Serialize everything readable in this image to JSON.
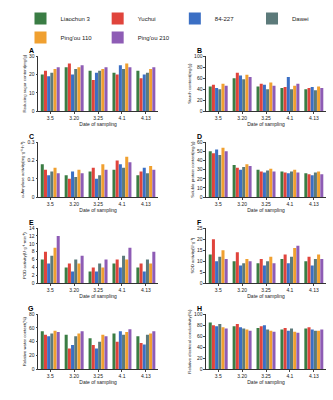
{
  "chart_data": [
    {
      "type": "bar",
      "title": "A",
      "legend": "top",
      "x_label": "Date of sampling",
      "y_label": "Reducing sugar content(mg/g)",
      "categories": [
        "3.5",
        "3.20",
        "3.25",
        "4.1",
        "4.13"
      ],
      "ylim": [
        0,
        30
      ],
      "yticks": [
        0,
        10,
        20,
        30
      ],
      "series": [
        {
          "name": "Liaochun 3",
          "color": "#3a7d44",
          "values": [
            20,
            24,
            22,
            21,
            22
          ]
        },
        {
          "name": "Yuchui",
          "color": "#e0443c",
          "values": [
            22,
            26,
            17,
            20,
            18
          ]
        },
        {
          "name": "84-227",
          "color": "#3b6fc4",
          "values": [
            19,
            20,
            21,
            25,
            20
          ]
        },
        {
          "name": "Dawei",
          "color": "#5c7a7a",
          "values": [
            21,
            23,
            22,
            23,
            21
          ]
        },
        {
          "name": "Ping'ou 110",
          "color": "#f0a030",
          "values": [
            23,
            24,
            23,
            26,
            23
          ]
        },
        {
          "name": "Ping'ou 210",
          "color": "#8e5cb5",
          "values": [
            24,
            25,
            24,
            24,
            24
          ]
        }
      ]
    },
    {
      "type": "bar",
      "title": "B",
      "x_label": "Date of sampling",
      "y_label": "Starch content(mg/g)",
      "categories": [
        "3.5",
        "3.20",
        "3.25",
        "4.1",
        "4.13"
      ],
      "ylim": [
        0,
        100
      ],
      "yticks": [
        0,
        20,
        40,
        60,
        80,
        100
      ],
      "series": [
        {
          "name": "Liaochun 3",
          "color": "#3a7d44",
          "values": [
            45,
            60,
            45,
            42,
            40
          ]
        },
        {
          "name": "Yuchui",
          "color": "#e0443c",
          "values": [
            48,
            70,
            50,
            44,
            42
          ]
        },
        {
          "name": "84-227",
          "color": "#3b6fc4",
          "values": [
            42,
            65,
            48,
            62,
            44
          ]
        },
        {
          "name": "Dawei",
          "color": "#5c7a7a",
          "values": [
            40,
            58,
            40,
            40,
            38
          ]
        },
        {
          "name": "Ping'ou 110",
          "color": "#f0a030",
          "values": [
            50,
            66,
            52,
            46,
            45
          ]
        },
        {
          "name": "Ping'ou 210",
          "color": "#8e5cb5",
          "values": [
            46,
            62,
            46,
            50,
            42
          ]
        }
      ]
    },
    {
      "type": "bar",
      "title": "C",
      "x_label": "Date of sampling",
      "y_label": "α-Amylase activity(mg·g⁻¹·h⁻¹)",
      "categories": [
        "3.5",
        "3.20",
        "3.25",
        "4.1",
        "4.13"
      ],
      "ylim": [
        0,
        0.3
      ],
      "yticks": [
        0,
        0.1,
        0.2,
        0.3
      ],
      "series": [
        {
          "name": "Liaochun 3",
          "color": "#3a7d44",
          "values": [
            0.18,
            0.12,
            0.14,
            0.15,
            0.12
          ]
        },
        {
          "name": "Yuchui",
          "color": "#e0443c",
          "values": [
            0.15,
            0.1,
            0.16,
            0.2,
            0.14
          ]
        },
        {
          "name": "84-227",
          "color": "#3b6fc4",
          "values": [
            0.12,
            0.14,
            0.1,
            0.18,
            0.16
          ]
        },
        {
          "name": "Dawei",
          "color": "#5c7a7a",
          "values": [
            0.14,
            0.11,
            0.12,
            0.16,
            0.13
          ]
        },
        {
          "name": "Ping'ou 110",
          "color": "#f0a030",
          "values": [
            0.16,
            0.15,
            0.18,
            0.22,
            0.17
          ]
        },
        {
          "name": "Ping'ou 210",
          "color": "#8e5cb5",
          "values": [
            0.13,
            0.13,
            0.15,
            0.19,
            0.15
          ]
        }
      ]
    },
    {
      "type": "bar",
      "title": "D",
      "x_label": "Date of sampling",
      "y_label": "Soluble protein content(mg/g)",
      "categories": [
        "3.5",
        "3.20",
        "3.25",
        "4.1",
        "4.13"
      ],
      "ylim": [
        0,
        60
      ],
      "yticks": [
        0,
        10,
        20,
        30,
        40,
        50,
        60
      ],
      "series": [
        {
          "name": "Liaochun 3",
          "color": "#3a7d44",
          "values": [
            50,
            35,
            30,
            28,
            26
          ]
        },
        {
          "name": "Yuchui",
          "color": "#e0443c",
          "values": [
            48,
            32,
            28,
            27,
            25
          ]
        },
        {
          "name": "84-227",
          "color": "#3b6fc4",
          "values": [
            52,
            30,
            27,
            26,
            24
          ]
        },
        {
          "name": "Dawei",
          "color": "#5c7a7a",
          "values": [
            46,
            33,
            29,
            28,
            27
          ]
        },
        {
          "name": "Ping'ou 110",
          "color": "#f0a030",
          "values": [
            54,
            36,
            31,
            30,
            28
          ]
        },
        {
          "name": "Ping'ou 210",
          "color": "#8e5cb5",
          "values": [
            50,
            34,
            28,
            27,
            25
          ]
        }
      ]
    },
    {
      "type": "bar",
      "title": "E",
      "x_label": "Date of sampling",
      "y_label": "POD activity(U·g⁻¹·min⁻¹)",
      "categories": [
        "3.5",
        "3.20",
        "3.25",
        "4.1",
        "4.13"
      ],
      "ylim": [
        0,
        14
      ],
      "yticks": [
        0,
        2,
        4,
        6,
        8,
        10,
        12,
        14
      ],
      "series": [
        {
          "name": "Liaochun 3",
          "color": "#3a7d44",
          "values": [
            6,
            4,
            3,
            5,
            4
          ]
        },
        {
          "name": "Yuchui",
          "color": "#e0443c",
          "values": [
            8,
            5,
            4,
            6,
            5
          ]
        },
        {
          "name": "84-227",
          "color": "#3b6fc4",
          "values": [
            5,
            3,
            3,
            4,
            3
          ]
        },
        {
          "name": "Dawei",
          "color": "#5c7a7a",
          "values": [
            7,
            6,
            5,
            7,
            6
          ]
        },
        {
          "name": "Ping'ou 110",
          "color": "#f0a030",
          "values": [
            9,
            5,
            4,
            6,
            5
          ]
        },
        {
          "name": "Ping'ou 210",
          "color": "#8e5cb5",
          "values": [
            12,
            7,
            6,
            9,
            8
          ]
        }
      ]
    },
    {
      "type": "bar",
      "title": "F",
      "x_label": "Date of sampling",
      "y_label": "SOD activity(U·g⁻¹)",
      "categories": [
        "3.5",
        "3.20",
        "3.25",
        "4.1",
        "4.13"
      ],
      "ylim": [
        0,
        25
      ],
      "yticks": [
        0,
        5,
        10,
        15,
        20,
        25
      ],
      "series": [
        {
          "name": "Liaochun 3",
          "color": "#3a7d44",
          "values": [
            13,
            10,
            9,
            11,
            10
          ]
        },
        {
          "name": "Yuchui",
          "color": "#e0443c",
          "values": [
            20,
            14,
            11,
            13,
            12
          ]
        },
        {
          "name": "84-227",
          "color": "#3b6fc4",
          "values": [
            10,
            8,
            8,
            9,
            8
          ]
        },
        {
          "name": "Dawei",
          "color": "#5c7a7a",
          "values": [
            12,
            9,
            10,
            12,
            11
          ]
        },
        {
          "name": "Ping'ou 110",
          "color": "#f0a030",
          "values": [
            15,
            11,
            12,
            16,
            13
          ]
        },
        {
          "name": "Ping'ou 210",
          "color": "#8e5cb5",
          "values": [
            11,
            10,
            9,
            17,
            11
          ]
        }
      ]
    },
    {
      "type": "bar",
      "title": "G",
      "x_label": "Date of sampling",
      "y_label": "Relative water content(%)",
      "categories": [
        "3.5",
        "3.20",
        "3.25",
        "4.1",
        "4.13"
      ],
      "ylim": [
        0,
        80
      ],
      "yticks": [
        0,
        20,
        40,
        60,
        80
      ],
      "series": [
        {
          "name": "Liaochun 3",
          "color": "#3a7d44",
          "values": [
            55,
            50,
            45,
            52,
            48
          ]
        },
        {
          "name": "Yuchui",
          "color": "#e0443c",
          "values": [
            50,
            30,
            35,
            40,
            38
          ]
        },
        {
          "name": "84-227",
          "color": "#3b6fc4",
          "values": [
            48,
            35,
            30,
            55,
            36
          ]
        },
        {
          "name": "Dawei",
          "color": "#5c7a7a",
          "values": [
            52,
            48,
            40,
            50,
            50
          ]
        },
        {
          "name": "Ping'ou 110",
          "color": "#f0a030",
          "values": [
            56,
            52,
            50,
            54,
            52
          ]
        },
        {
          "name": "Ping'ou 210",
          "color": "#8e5cb5",
          "values": [
            54,
            55,
            48,
            58,
            55
          ]
        }
      ]
    },
    {
      "type": "bar",
      "title": "H",
      "x_label": "Date of sampling",
      "y_label": "Relative electrical conductivity(%)",
      "categories": [
        "3.5",
        "3.20",
        "3.25",
        "4.1",
        "4.13"
      ],
      "ylim": [
        0,
        100
      ],
      "yticks": [
        0,
        20,
        40,
        60,
        80,
        100
      ],
      "series": [
        {
          "name": "Liaochun 3",
          "color": "#3a7d44",
          "values": [
            85,
            78,
            75,
            72,
            74
          ]
        },
        {
          "name": "Yuchui",
          "color": "#e0443c",
          "values": [
            80,
            82,
            78,
            75,
            76
          ]
        },
        {
          "name": "84-227",
          "color": "#3b6fc4",
          "values": [
            78,
            76,
            80,
            70,
            72
          ]
        },
        {
          "name": "Dawei",
          "color": "#5c7a7a",
          "values": [
            82,
            74,
            72,
            74,
            70
          ]
        },
        {
          "name": "Ping'ou 110",
          "color": "#f0a030",
          "values": [
            76,
            72,
            70,
            68,
            70
          ]
        },
        {
          "name": "Ping'ou 210",
          "color": "#8e5cb5",
          "values": [
            74,
            70,
            68,
            66,
            72
          ]
        }
      ]
    }
  ]
}
